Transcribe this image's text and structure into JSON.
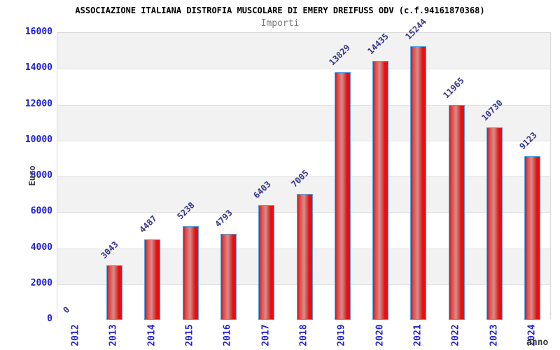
{
  "colors": {
    "background": "#ffffff",
    "title": "#000000",
    "subtitle": "#7a7a7a",
    "axis_tick_blue": "#2222cc",
    "value_label_navy": "#333388",
    "axis_title_gray": "#3a3a3a",
    "bar_border_blue": "#55a0e0",
    "bar_red": "#e01111",
    "bar_highlight": "#d0908e",
    "band_gray": "#f2f2f2",
    "grid_line": "#e2e2e2",
    "plot_border": "#d9d9d9"
  },
  "chart_data": {
    "type": "bar",
    "title": "ASSOCIAZIONE ITALIANA DISTROFIA MUSCOLARE DI EMERY DREIFUSS ODV (c.f.94161870368)",
    "subtitle": "Importi",
    "xlabel": "anno",
    "ylabel": "Euro",
    "categories": [
      "2012",
      "2013",
      "2014",
      "2015",
      "2016",
      "2017",
      "2018",
      "2019",
      "2020",
      "2021",
      "2022",
      "2023",
      "2024"
    ],
    "values": [
      0,
      3043,
      4487,
      5238,
      4793,
      6403,
      7005,
      13829,
      14435,
      15244,
      11965,
      10730,
      9123
    ],
    "ylim": [
      0,
      16000
    ],
    "ytick_step": 2000,
    "grid": "horizontal gridlines with alternating gray/white bands every 2000",
    "legend": "none",
    "bar_style": "red vertical gradient-shaded bars with light blue outline, rotated navy value labels above each bar"
  }
}
